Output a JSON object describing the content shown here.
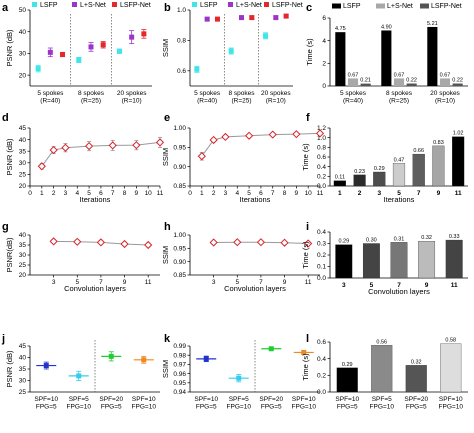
{
  "colors": {
    "lsfp": "#3ee6ea",
    "ls_net": "#9b34c8",
    "lsfp_net": "#e5262a",
    "line": "#999999",
    "marker": "#d8242a",
    "bar_black": "#000000",
    "bar_mid": "#a8a8a8",
    "bar_dark": "#555555",
    "pair_blue": "#2233cc",
    "pair_cyan": "#33ccee",
    "pair_green": "#22cc33",
    "pair_orange": "#ee8822"
  },
  "chart_data": [
    {
      "id": "a",
      "letter": "a",
      "type": "scatter",
      "ylabel": "PSNR (dB)",
      "ylim": [
        15,
        50
      ],
      "yticks": [
        20,
        30,
        40,
        50
      ],
      "categories": [
        "5 spokes\n(R=40)",
        "8 spokes\n(R=25)",
        "20 spokes\n(R=10)"
      ],
      "separators": true,
      "legend": [
        {
          "label": "LSFP",
          "color": "lsfp",
          "marker": "square"
        },
        {
          "label": "L+S-Net",
          "color": "ls_net",
          "marker": "square"
        },
        {
          "label": "LSFP-Net",
          "color": "lsfp_net",
          "marker": "square"
        }
      ],
      "series": [
        {
          "name": "LSFP",
          "color": "lsfp",
          "marker": "square",
          "x": [
            0.7,
            1.7,
            2.7
          ],
          "values": [
            23,
            27,
            31
          ],
          "err": [
            1.5,
            1.2,
            1.0
          ]
        },
        {
          "name": "L+S-Net",
          "color": "ls_net",
          "marker": "square",
          "x": [
            1.0,
            2.0,
            3.0
          ],
          "values": [
            30.5,
            33,
            37.5
          ],
          "err": [
            2.0,
            2.0,
            3.0
          ]
        },
        {
          "name": "LSFP-Net",
          "color": "lsfp_net",
          "marker": "square",
          "x": [
            1.3,
            2.3,
            3.3
          ],
          "values": [
            29.5,
            34,
            39
          ],
          "err": [
            1.0,
            1.5,
            2.0
          ]
        }
      ],
      "xlim": [
        0.5,
        3.5
      ]
    },
    {
      "id": "b",
      "letter": "b",
      "type": "scatter",
      "ylabel": "SSIM",
      "ylim": [
        0.5,
        1.0
      ],
      "yticks": [
        0.6,
        0.8,
        1.0
      ],
      "categories": [
        "5 spokes\n(R=40)",
        "8 spokes\n(R=25)",
        "20 spokes\n(R=10)"
      ],
      "separators": true,
      "legend": [
        {
          "label": "LSFP",
          "color": "lsfp",
          "marker": "square"
        },
        {
          "label": "L+S-Net",
          "color": "ls_net",
          "marker": "square"
        },
        {
          "label": "LSFP-Net",
          "color": "lsfp_net",
          "marker": "square"
        }
      ],
      "series": [
        {
          "name": "LSFP",
          "color": "lsfp",
          "marker": "square",
          "x": [
            0.7,
            1.7,
            2.7
          ],
          "values": [
            0.61,
            0.73,
            0.83
          ],
          "err": [
            0.02,
            0.02,
            0.02
          ]
        },
        {
          "name": "L+S-Net",
          "color": "ls_net",
          "marker": "square",
          "x": [
            1.0,
            2.0,
            3.0
          ],
          "values": [
            0.94,
            0.95,
            0.95
          ],
          "err": [
            0.01,
            0.01,
            0.01
          ]
        },
        {
          "name": "LSFP-Net",
          "color": "lsfp_net",
          "marker": "square",
          "x": [
            1.3,
            2.3,
            3.3
          ],
          "values": [
            0.94,
            0.95,
            0.96
          ],
          "err": [
            0.01,
            0.01,
            0.01
          ]
        }
      ],
      "xlim": [
        0.5,
        3.5
      ]
    },
    {
      "id": "c",
      "letter": "c",
      "type": "bar",
      "ylabel": "Time (s)",
      "ylim": [
        0,
        6
      ],
      "yticks": [
        0,
        2,
        4,
        6
      ],
      "categories": [
        "5 spokes\n(R=40)",
        "8 spokes\n(R=25)",
        "20 spokes\n(R=10)"
      ],
      "legend": [
        {
          "label": "LSFP",
          "color": "bar_black",
          "marker": "rect"
        },
        {
          "label": "L+S-Net",
          "color": "bar_mid",
          "marker": "rect"
        },
        {
          "label": "LSFP-Net",
          "color": "bar_dark",
          "marker": "rect"
        }
      ],
      "series": [
        {
          "name": "LSFP",
          "color": "bar_black",
          "values": [
            4.75,
            4.9,
            5.21
          ],
          "labels": [
            "4.75",
            "4.90",
            "5.21"
          ]
        },
        {
          "name": "L+S-Net",
          "color": "bar_mid",
          "values": [
            0.67,
            0.67,
            0.67
          ],
          "labels": [
            "0.67",
            "0.67",
            "0.67"
          ]
        },
        {
          "name": "LSFP-Net",
          "color": "bar_dark",
          "values": [
            0.21,
            0.22,
            0.22
          ],
          "labels": [
            "0.21",
            "0.22",
            "0.22"
          ]
        }
      ]
    },
    {
      "id": "d",
      "letter": "d",
      "type": "line",
      "ylabel": "PSNR (dB)",
      "xlabel": "Iterations",
      "xlim": [
        0,
        11
      ],
      "xticks": [
        0,
        1,
        2,
        3,
        4,
        5,
        6,
        7,
        8,
        9,
        10,
        11
      ],
      "ylim": [
        20,
        45
      ],
      "yticks": [
        20,
        25,
        30,
        35,
        40,
        45
      ],
      "series": [
        {
          "x": [
            1,
            2,
            3,
            5,
            7,
            9,
            11
          ],
          "values": [
            28.5,
            35.5,
            36.5,
            37.2,
            37.5,
            37.6,
            38.8
          ],
          "err": [
            1.2,
            1.5,
            1.8,
            2.0,
            2.2,
            2.0,
            2.2
          ]
        }
      ]
    },
    {
      "id": "e",
      "letter": "e",
      "type": "line",
      "ylabel": "SSIM",
      "xlabel": "Iterations",
      "xlim": [
        0,
        11
      ],
      "xticks": [
        0,
        1,
        2,
        3,
        4,
        5,
        6,
        7,
        8,
        9,
        10,
        11
      ],
      "ylim": [
        0.85,
        1.0
      ],
      "yticks": [
        0.85,
        0.9,
        0.95,
        1.0
      ],
      "series": [
        {
          "x": [
            1,
            2,
            3,
            5,
            7,
            9,
            11
          ],
          "values": [
            0.927,
            0.969,
            0.977,
            0.98,
            0.983,
            0.984,
            0.986
          ],
          "err": [
            0.01,
            0.005,
            0.004,
            0.003,
            0.003,
            0.003,
            0.003
          ]
        }
      ]
    },
    {
      "id": "f",
      "letter": "f",
      "type": "bar",
      "ylabel": "Time (s)",
      "xlabel": "Iterations",
      "ylim": [
        0,
        1.2
      ],
      "yticks": [
        0.0,
        0.2,
        0.4,
        0.6,
        0.8,
        1.0,
        1.2
      ],
      "categories": [
        "1",
        "2",
        "3",
        "5",
        "7",
        "9",
        "11"
      ],
      "bar_colors": [
        "#000000",
        "#2b2b2b",
        "#4d4d4d",
        "#cccccc",
        "#5e5e5e",
        "#a6a6a6",
        "#000000"
      ],
      "series": [
        {
          "values": [
            0.11,
            0.23,
            0.29,
            0.47,
            0.66,
            0.83,
            1.02
          ],
          "labels": [
            "0.11",
            "0.23",
            "0.29",
            "0.47",
            "0.66",
            "0.83",
            "1.02"
          ]
        }
      ]
    },
    {
      "id": "g",
      "letter": "g",
      "type": "line",
      "ylabel": "PSNR(dB)",
      "xlabel": "Convolution layers",
      "xlim": [
        1,
        12
      ],
      "xticks": [
        3,
        5,
        7,
        9,
        11
      ],
      "ylim": [
        20,
        40
      ],
      "yticks": [
        20,
        25,
        30,
        35,
        40
      ],
      "series": [
        {
          "x": [
            3,
            5,
            7,
            9,
            11
          ],
          "values": [
            36.8,
            36.6,
            36.3,
            35.5,
            35.0
          ],
          "err": [
            1.0,
            1.0,
            1.0,
            1.0,
            1.0
          ]
        }
      ]
    },
    {
      "id": "h",
      "letter": "h",
      "type": "line",
      "ylabel": "SSIM",
      "xlabel": "Convolution layers",
      "xlim": [
        1,
        12
      ],
      "xticks": [
        3,
        5,
        7,
        9,
        11
      ],
      "ylim": [
        0.85,
        1.0
      ],
      "yticks": [
        0.85,
        0.9,
        0.95,
        1.0
      ],
      "series": [
        {
          "x": [
            3,
            5,
            7,
            9,
            11
          ],
          "values": [
            0.972,
            0.973,
            0.973,
            0.971,
            0.968
          ],
          "err": [
            0.002,
            0.002,
            0.002,
            0.002,
            0.002
          ]
        }
      ]
    },
    {
      "id": "i",
      "letter": "i",
      "type": "bar",
      "ylabel": "Time (s)",
      "xlabel": "Convolution layers",
      "ylim": [
        0,
        0.4
      ],
      "yticks": [
        0.0,
        0.1,
        0.2,
        0.3,
        0.4
      ],
      "categories": [
        "3",
        "5",
        "7",
        "9",
        "11"
      ],
      "bar_colors": [
        "#000000",
        "#444444",
        "#777777",
        "#bbbbbb",
        "#444444"
      ],
      "series": [
        {
          "values": [
            0.29,
            0.3,
            0.31,
            0.32,
            0.33
          ],
          "labels": [
            "0.29",
            "0.30",
            "0.31",
            "0.32",
            "0.33"
          ]
        }
      ]
    },
    {
      "id": "j",
      "letter": "j",
      "type": "scatter",
      "ylabel": "PSNR (dB)",
      "ylim": [
        25,
        45
      ],
      "yticks": [
        25,
        30,
        35,
        40,
        45
      ],
      "categories": [
        "SPF=10\nFPG=5",
        "SPF=5\nFPG=10",
        "SPF=20\nFPG=5",
        "SPF=10\nFPG=10"
      ],
      "separator_mid": true,
      "xlim": [
        0.5,
        4.5
      ],
      "series": [
        {
          "color": "pair_blue",
          "marker": "square",
          "x": [
            1
          ],
          "values": [
            36.5
          ],
          "err": [
            1.5
          ]
        },
        {
          "color": "pair_cyan",
          "marker": "square",
          "x": [
            2
          ],
          "values": [
            32
          ],
          "err": [
            2.0
          ]
        },
        {
          "color": "pair_green",
          "marker": "square",
          "x": [
            3
          ],
          "values": [
            40.5
          ],
          "err": [
            2.0
          ]
        },
        {
          "color": "pair_orange",
          "marker": "square",
          "x": [
            4
          ],
          "values": [
            39
          ],
          "err": [
            1.5
          ]
        }
      ]
    },
    {
      "id": "k",
      "letter": "k",
      "type": "scatter",
      "ylabel": "SSIM",
      "ylim": [
        0.94,
        0.99
      ],
      "yticks": [
        0.94,
        0.95,
        0.96,
        0.97,
        0.98,
        0.99
      ],
      "categories": [
        "SPF=10\nFPG=5",
        "SPF=5\nFPG=10",
        "SPF=20\nFPG=5",
        "SPF=10\nFPG=10"
      ],
      "separator_mid": true,
      "xlim": [
        0.5,
        4.5
      ],
      "series": [
        {
          "color": "pair_blue",
          "marker": "square",
          "x": [
            1
          ],
          "values": [
            0.976
          ],
          "err": [
            0.003
          ]
        },
        {
          "color": "pair_cyan",
          "marker": "square",
          "x": [
            2
          ],
          "values": [
            0.955
          ],
          "err": [
            0.004
          ]
        },
        {
          "color": "pair_green",
          "marker": "square",
          "x": [
            3
          ],
          "values": [
            0.987
          ],
          "err": [
            0.001
          ]
        },
        {
          "color": "pair_orange",
          "marker": "square",
          "x": [
            4
          ],
          "values": [
            0.983
          ],
          "err": [
            0.002
          ]
        }
      ]
    },
    {
      "id": "l",
      "letter": "l",
      "type": "bar",
      "ylabel": "Time (s)",
      "ylim": [
        0,
        0.6
      ],
      "yticks": [
        0.0,
        0.2,
        0.4,
        0.6
      ],
      "categories": [
        "SPF=10\nFPG=5",
        "SPF=5\nFPG=10",
        "SPF=20\nFPG=5",
        "SPF=10\nFPG=10"
      ],
      "bar_colors": [
        "#000000",
        "#8a8a8a",
        "#555555",
        "#dddddd"
      ],
      "series": [
        {
          "values": [
            0.29,
            0.56,
            0.32,
            0.58
          ],
          "labels": [
            "0.29",
            "0.56",
            "0.32",
            "0.58"
          ]
        }
      ]
    }
  ]
}
